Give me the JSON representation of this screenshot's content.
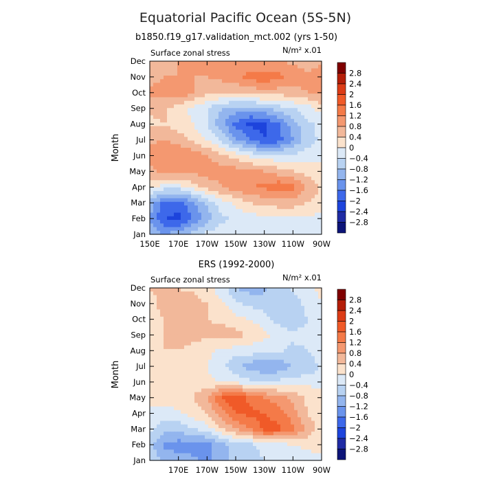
{
  "figure": {
    "title": "Equatorial Pacific Ocean (5S-5N)"
  },
  "colorbar": {
    "labels": [
      "2.8",
      "2.4",
      "2",
      "1.6",
      "1.2",
      "0.8",
      "0.4",
      "0",
      "−0.4",
      "−0.8",
      "−1.2",
      "−1.6",
      "−2",
      "−2.4",
      "−2.8"
    ],
    "colors": [
      "#7f0000",
      "#b41e08",
      "#dc3c16",
      "#f05a28",
      "#f47a48",
      "#f49870",
      "#f2b89a",
      "#fbe2cc",
      "#dce9f7",
      "#b8d2f2",
      "#93b5ee",
      "#6a93ec",
      "#3d68ea",
      "#1d44dc",
      "#1f2ba4",
      "#0c1478"
    ]
  },
  "chart_data": [
    {
      "type": "heatmap",
      "title": "b1850.f19_g17.validation_mct.002 (yrs 1-50)",
      "left_label": "Surface zonal stress",
      "units_label": "N/m² x.01",
      "ylabel": "Month",
      "xlabel": "",
      "x_ticks": [
        "150E",
        "170E",
        "170W",
        "150W",
        "130W",
        "110W",
        "90W"
      ],
      "x_values_deg_east": [
        150,
        170,
        190,
        210,
        230,
        250,
        270
      ],
      "y_ticks": [
        "Jan",
        "Feb",
        "Mar",
        "Apr",
        "May",
        "Jun",
        "Jul",
        "Aug",
        "Sep",
        "Oct",
        "Nov",
        "Dec"
      ],
      "longitudes": [
        150,
        160,
        170,
        180,
        190,
        200,
        210,
        220,
        230,
        240,
        250,
        260,
        270
      ],
      "values": [
        [
          -0.8,
          -1.2,
          -1.0,
          -0.6,
          -0.3,
          -0.2,
          -0.2,
          -0.2,
          -0.2,
          -0.2,
          -0.2,
          -0.2,
          -0.2
        ],
        [
          -1.2,
          -2.0,
          -2.1,
          -1.6,
          -1.0,
          -0.5,
          -0.3,
          -0.2,
          -0.1,
          -0.1,
          -0.1,
          -0.1,
          -0.1
        ],
        [
          -1.0,
          -1.7,
          -1.8,
          -1.3,
          -0.7,
          -0.2,
          0.1,
          0.4,
          0.5,
          0.6,
          0.6,
          0.4,
          0.2
        ],
        [
          0.2,
          -0.2,
          -0.2,
          0.2,
          0.5,
          0.8,
          1.0,
          1.2,
          1.3,
          1.5,
          1.3,
          0.8,
          0.3
        ],
        [
          0.7,
          0.9,
          0.9,
          0.9,
          1.0,
          1.0,
          1.0,
          0.9,
          0.8,
          0.6,
          0.4,
          0.2,
          0.1
        ],
        [
          1.0,
          1.2,
          1.2,
          1.1,
          0.8,
          0.5,
          0.2,
          -0.1,
          -0.3,
          -0.3,
          -0.3,
          -0.2,
          -0.1
        ],
        [
          0.7,
          0.8,
          0.6,
          0.3,
          0.0,
          -0.5,
          -1.1,
          -1.6,
          -2.0,
          -1.8,
          -1.2,
          -0.6,
          -0.3
        ],
        [
          0.3,
          0.4,
          0.2,
          0.0,
          -0.4,
          -1.1,
          -1.7,
          -2.1,
          -2.1,
          -1.6,
          -1.0,
          -0.5,
          -0.3
        ],
        [
          0.5,
          0.5,
          0.2,
          -0.1,
          -0.4,
          -0.8,
          -1.0,
          -1.0,
          -0.8,
          -0.6,
          -0.4,
          -0.2,
          0.2
        ],
        [
          0.9,
          1.0,
          1.2,
          0.8,
          0.5,
          0.5,
          0.5,
          0.5,
          0.6,
          0.6,
          0.6,
          0.8,
          0.9
        ],
        [
          0.6,
          0.8,
          0.8,
          0.8,
          0.8,
          0.9,
          1.0,
          1.4,
          1.5,
          1.3,
          1.1,
          0.9,
          0.9
        ],
        [
          0.5,
          0.6,
          0.8,
          0.8,
          0.8,
          0.8,
          0.8,
          0.8,
          0.8,
          0.8,
          0.7,
          0.6,
          0.8
        ]
      ],
      "clevels": [
        -2.8,
        -2.4,
        -2,
        -1.6,
        -1.2,
        -0.8,
        -0.4,
        0,
        0.4,
        0.8,
        1.2,
        1.6,
        2,
        2.4,
        2.8
      ]
    },
    {
      "type": "heatmap",
      "title": "ERS (1992-2000)",
      "left_label": "Surface zonal stress",
      "units_label": "N/m² x.01",
      "ylabel": "Month",
      "xlabel": "",
      "x_ticks": [
        "170E",
        "170W",
        "150W",
        "130W",
        "110W",
        "90W"
      ],
      "x_values_deg_east": [
        170,
        190,
        210,
        230,
        250,
        270
      ],
      "y_ticks": [
        "Jan",
        "Feb",
        "Mar",
        "Apr",
        "May",
        "Jun",
        "Jul",
        "Aug",
        "Sep",
        "Oct",
        "Nov",
        "Dec"
      ],
      "longitudes": [
        150,
        160,
        170,
        180,
        190,
        200,
        210,
        220,
        230,
        240,
        250,
        260,
        270
      ],
      "values": [
        [
          -0.4,
          -0.9,
          -1.0,
          -1.1,
          -1.3,
          -1.0,
          -0.6,
          -0.5,
          -0.4,
          -0.3,
          -0.2,
          -0.2,
          -0.1
        ],
        [
          -0.7,
          -1.3,
          -1.4,
          -1.4,
          -1.3,
          -1.0,
          -0.6,
          -0.5,
          -0.3,
          -0.1,
          0.0,
          0.1,
          0.2
        ],
        [
          -0.3,
          -0.6,
          -0.7,
          -0.4,
          -0.2,
          0.4,
          0.8,
          1.2,
          1.8,
          1.7,
          1.3,
          0.7,
          0.2
        ],
        [
          -0.2,
          -0.2,
          -0.1,
          0.2,
          0.4,
          1.0,
          1.6,
          1.7,
          1.6,
          1.4,
          1.0,
          0.4,
          0.1
        ],
        [
          0.2,
          0.2,
          0.3,
          0.4,
          0.8,
          1.6,
          1.9,
          1.5,
          1.2,
          1.0,
          0.7,
          0.3,
          0.1
        ],
        [
          0.1,
          0.2,
          0.3,
          0.2,
          0.1,
          0.0,
          -0.1,
          -0.3,
          -0.3,
          -0.3,
          -0.2,
          -0.1,
          -0.1
        ],
        [
          0.2,
          0.3,
          0.3,
          0.2,
          0.0,
          -0.3,
          -0.7,
          -1.0,
          -1.2,
          -1.1,
          -0.8,
          -0.8,
          -0.3
        ],
        [
          0.3,
          0.4,
          0.4,
          0.3,
          0.1,
          -0.1,
          -0.2,
          -0.2,
          -0.2,
          -0.3,
          -0.5,
          -0.4,
          -0.1
        ],
        [
          0.3,
          0.4,
          0.5,
          0.5,
          0.5,
          0.6,
          0.6,
          0.3,
          0.1,
          -0.1,
          -0.3,
          -0.3,
          0.0
        ],
        [
          0.3,
          0.4,
          0.5,
          0.5,
          0.4,
          0.3,
          0.1,
          0.0,
          -0.2,
          -0.6,
          -0.7,
          -0.4,
          0.0
        ],
        [
          0.3,
          0.5,
          0.6,
          0.6,
          0.4,
          0.1,
          -0.3,
          -0.5,
          -0.6,
          -0.7,
          -0.6,
          -0.3,
          0.0
        ],
        [
          0.4,
          0.5,
          0.4,
          0.3,
          0.1,
          -0.2,
          -0.8,
          -1.0,
          -0.9,
          -0.6,
          -0.3,
          -0.1,
          0.1
        ]
      ],
      "clevels": [
        -2.8,
        -2.4,
        -2,
        -1.6,
        -1.2,
        -0.8,
        -0.4,
        0,
        0.4,
        0.8,
        1.2,
        1.6,
        2,
        2.4,
        2.8
      ]
    }
  ]
}
